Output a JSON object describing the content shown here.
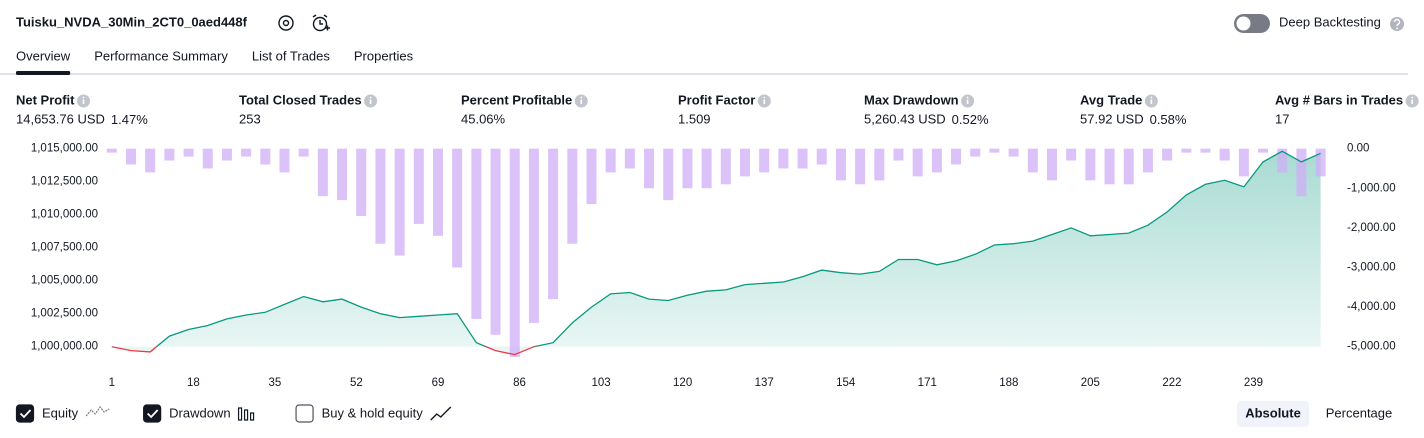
{
  "header": {
    "title": "Tuisku_NVDA_30Min_2CT0_0aed448f",
    "deep_backtesting_label": "Deep Backtesting",
    "deep_backtesting_on": false
  },
  "tabs": {
    "items": [
      "Overview",
      "Performance Summary",
      "List of Trades",
      "Properties"
    ],
    "active": 0
  },
  "metrics": [
    {
      "label": "Net Profit",
      "value": "14,653.76 USD",
      "percent": "1.47%",
      "color": "#089981"
    },
    {
      "label": "Total Closed Trades",
      "value": "253",
      "color": "#131722"
    },
    {
      "label": "Percent Profitable",
      "value": "45.06%",
      "color": "#089981"
    },
    {
      "label": "Profit Factor",
      "value": "1.509",
      "color": "#089981"
    },
    {
      "label": "Max Drawdown",
      "value": "5,260.43 USD",
      "percent": "0.52%",
      "color": "#f23645"
    },
    {
      "label": "Avg Trade",
      "value": "57.92 USD",
      "percent": "0.58%",
      "color": "#089981"
    },
    {
      "label": "Avg # Bars in Trades",
      "value": "17",
      "color": "#131722"
    }
  ],
  "chart_data": {
    "type": "line",
    "x": [
      1,
      5,
      9,
      13,
      17,
      21,
      25,
      29,
      33,
      37,
      41,
      45,
      49,
      53,
      57,
      61,
      65,
      69,
      73,
      77,
      81,
      85,
      89,
      93,
      97,
      101,
      105,
      109,
      113,
      117,
      121,
      125,
      129,
      133,
      137,
      141,
      145,
      149,
      153,
      157,
      161,
      165,
      169,
      173,
      177,
      181,
      185,
      189,
      193,
      197,
      201,
      205,
      209,
      213,
      217,
      221,
      225,
      229,
      233,
      237,
      241,
      245,
      249,
      253
    ],
    "series": [
      {
        "name": "Equity",
        "type": "line",
        "axis": "y",
        "checked": true,
        "color": "#089981",
        "below_start_color": "#f23645",
        "values": [
          1000000,
          999700,
          999600,
          1000800,
          1001300,
          1001600,
          1002100,
          1002400,
          1002600,
          1003200,
          1003800,
          1003400,
          1003600,
          1003000,
          1002500,
          1002200,
          1002300,
          1002400,
          1002500,
          1000300,
          999700,
          999400,
          1000000,
          1000300,
          1001800,
          1003000,
          1004000,
          1004100,
          1003600,
          1003500,
          1003900,
          1004200,
          1004300,
          1004700,
          1004800,
          1004900,
          1005300,
          1005800,
          1005600,
          1005500,
          1005700,
          1006600,
          1006600,
          1006200,
          1006500,
          1007000,
          1007700,
          1007800,
          1008000,
          1008500,
          1009000,
          1008400,
          1008500,
          1008600,
          1009200,
          1010200,
          1011500,
          1012300,
          1012600,
          1012100,
          1014000,
          1014800,
          1014000,
          1014650
        ]
      },
      {
        "name": "Drawdown",
        "type": "bar",
        "axis": "y2",
        "checked": true,
        "color": "#cfaef5",
        "values": [
          -100,
          -400,
          -600,
          -300,
          -200,
          -500,
          -300,
          -200,
          -400,
          -600,
          -200,
          -1200,
          -1300,
          -1700,
          -2400,
          -2700,
          -1900,
          -2200,
          -3000,
          -4300,
          -4700,
          -5260,
          -4400,
          -3800,
          -2400,
          -1400,
          -600,
          -500,
          -1000,
          -1300,
          -1000,
          -1000,
          -900,
          -700,
          -600,
          -500,
          -500,
          -400,
          -800,
          -900,
          -800,
          -300,
          -700,
          -600,
          -400,
          -200,
          -100,
          -200,
          -600,
          -800,
          -300,
          -800,
          -900,
          -900,
          -600,
          -300,
          -100,
          -100,
          -300,
          -700,
          -100,
          -600,
          -1200,
          -700
        ]
      }
    ],
    "xlim": [
      0,
      256
    ],
    "xticks": [
      1,
      18,
      35,
      52,
      69,
      86,
      103,
      120,
      137,
      154,
      171,
      188,
      205,
      222,
      239
    ],
    "ylim": [
      998800,
      1015300
    ],
    "yticks": [
      {
        "value": 1000000,
        "label": "1,000,000.00"
      },
      {
        "value": 1002500,
        "label": "1,002,500.00"
      },
      {
        "value": 1005000,
        "label": "1,005,000.00"
      },
      {
        "value": 1007500,
        "label": "1,007,500.00"
      },
      {
        "value": 1010000,
        "label": "1,010,000.00"
      },
      {
        "value": 1012500,
        "label": "1,012,500.00"
      },
      {
        "value": 1015000,
        "label": "1,015,000.00"
      }
    ],
    "y2lim": [
      -5400,
      100
    ],
    "y2ticks": [
      {
        "value": 0,
        "label": "0.00"
      },
      {
        "value": -1000,
        "label": "-1,000.00"
      },
      {
        "value": -2000,
        "label": "-2,000.00"
      },
      {
        "value": -3000,
        "label": "-3,000.00"
      },
      {
        "value": -4000,
        "label": "-4,000.00"
      },
      {
        "value": -5000,
        "label": "-5,000.00"
      }
    ],
    "grid": false,
    "toggles": [
      {
        "label": "Buy & hold equity",
        "checked": false
      }
    ]
  },
  "controls": {
    "views": [
      "Absolute",
      "Percentage"
    ],
    "active_view": 0
  }
}
